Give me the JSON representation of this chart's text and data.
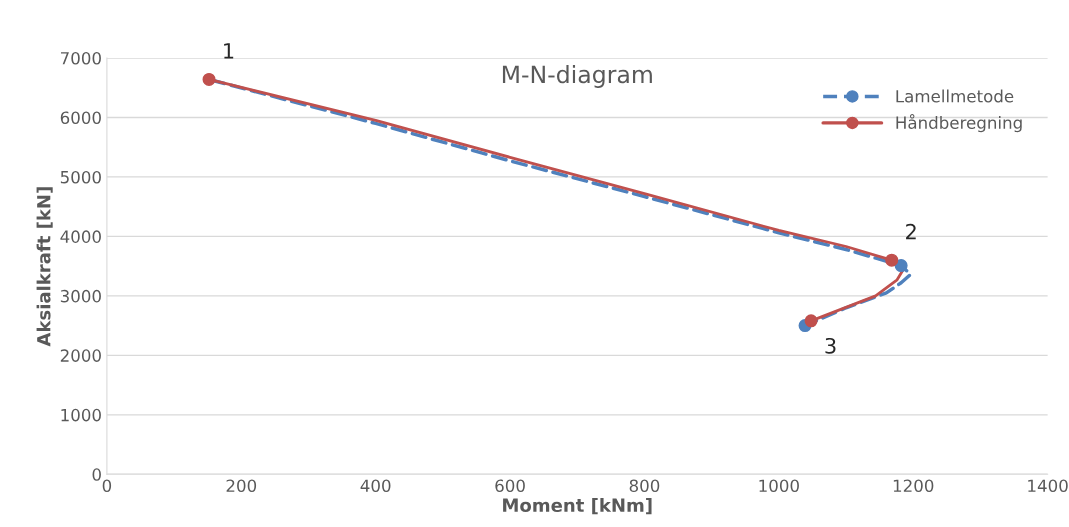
{
  "chart_data": {
    "type": "line",
    "title": "M-N-diagram",
    "xlabel": "Moment [kNm]",
    "ylabel": "Aksialkraft [kN]",
    "series": [
      {
        "name": "Lamellmetode",
        "color": "#4f81bd",
        "line_style": "dashed",
        "marker": "none",
        "x": [
          155,
          400,
          600,
          800,
          1000,
          1100,
          1182,
          1196,
          1182,
          1160,
          1100,
          1039
        ],
        "values": [
          6630,
          5900,
          5270,
          4670,
          4060,
          3780,
          3510,
          3360,
          3220,
          3050,
          2800,
          2500
        ]
      },
      {
        "name": "Håndberegning",
        "color": "#c0504d",
        "line_style": "solid",
        "marker": "none",
        "x": [
          152,
          400,
          600,
          800,
          1000,
          1100,
          1168,
          1185,
          1176,
          1144,
          1048
        ],
        "values": [
          6640,
          5950,
          5330,
          4720,
          4100,
          3830,
          3600,
          3440,
          3270,
          3000,
          2580
        ]
      },
      {
        "type": "scatter",
        "color": "#4f81bd",
        "marker": "circle",
        "x": [
          1182,
          1039
        ],
        "values": [
          3510,
          2500
        ]
      },
      {
        "type": "scatter",
        "color": "#c0504d",
        "marker": "circle",
        "x": [
          152,
          1168,
          1048
        ],
        "values": [
          6640,
          3600,
          2580
        ]
      }
    ],
    "annotations": [
      {
        "text": "1",
        "x": 152,
        "y": 6640
      },
      {
        "text": "2",
        "x": 1168,
        "y": 3600
      },
      {
        "text": "3",
        "x": 1048,
        "y": 2580
      }
    ],
    "xlim": [
      0,
      1400
    ],
    "xticks": [
      0,
      200,
      400,
      600,
      800,
      1000,
      1200,
      1400
    ],
    "ylim": [
      0,
      7000
    ],
    "yticks": [
      0,
      1000,
      2000,
      3000,
      4000,
      5000,
      6000,
      7000
    ],
    "grid": "y",
    "legend": "top right"
  }
}
